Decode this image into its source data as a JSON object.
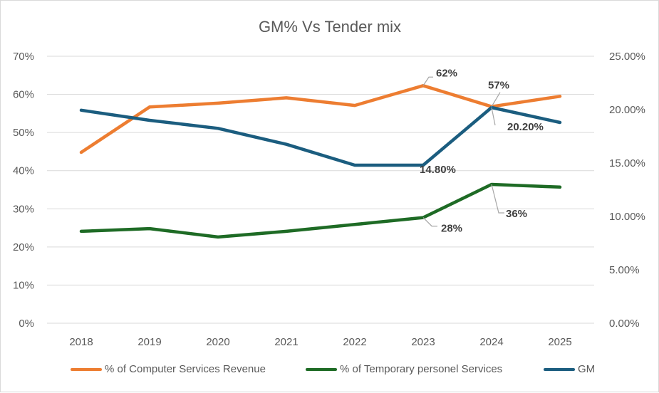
{
  "chart_data": {
    "type": "line",
    "title": "GM% Vs Tender mix",
    "categories": [
      "2018",
      "2019",
      "2020",
      "2021",
      "2022",
      "2023",
      "2024",
      "2025"
    ],
    "y_left": {
      "ticks": [
        "0%",
        "10%",
        "20%",
        "30%",
        "40%",
        "50%",
        "60%",
        "70%"
      ],
      "min": 0,
      "max": 70
    },
    "y_right": {
      "ticks": [
        "0.00%",
        "5.00%",
        "10.00%",
        "15.00%",
        "20.00%",
        "25.00%"
      ],
      "min": 0,
      "max": 25
    },
    "grid": true,
    "legend_position": "bottom",
    "series": [
      {
        "name": "% of Computer Services Revenue",
        "color": "#ed7d31",
        "axis": "left",
        "values": [
          44.8,
          56.7,
          57.7,
          59.1,
          57.1,
          62.3,
          56.8,
          59.5
        ]
      },
      {
        "name": "% of Temporary personel Services",
        "color": "#1e6b25",
        "axis": "left",
        "values": [
          24.1,
          24.8,
          22.6,
          24.1,
          25.9,
          27.7,
          36.4,
          35.7
        ]
      },
      {
        "name": "GM",
        "color": "#1b5d7f",
        "axis": "right",
        "values": [
          19.95,
          19.0,
          18.25,
          16.75,
          14.8,
          14.8,
          20.2,
          18.8
        ]
      }
    ],
    "data_labels": [
      {
        "series": 0,
        "index": 5,
        "text": "62%"
      },
      {
        "series": 0,
        "index": 6,
        "text": "57%"
      },
      {
        "series": 2,
        "index": 5,
        "text": "14.80%"
      },
      {
        "series": 2,
        "index": 6,
        "text": "20.20%"
      },
      {
        "series": 1,
        "index": 5,
        "text": "28%"
      },
      {
        "series": 1,
        "index": 6,
        "text": "36%"
      }
    ]
  }
}
